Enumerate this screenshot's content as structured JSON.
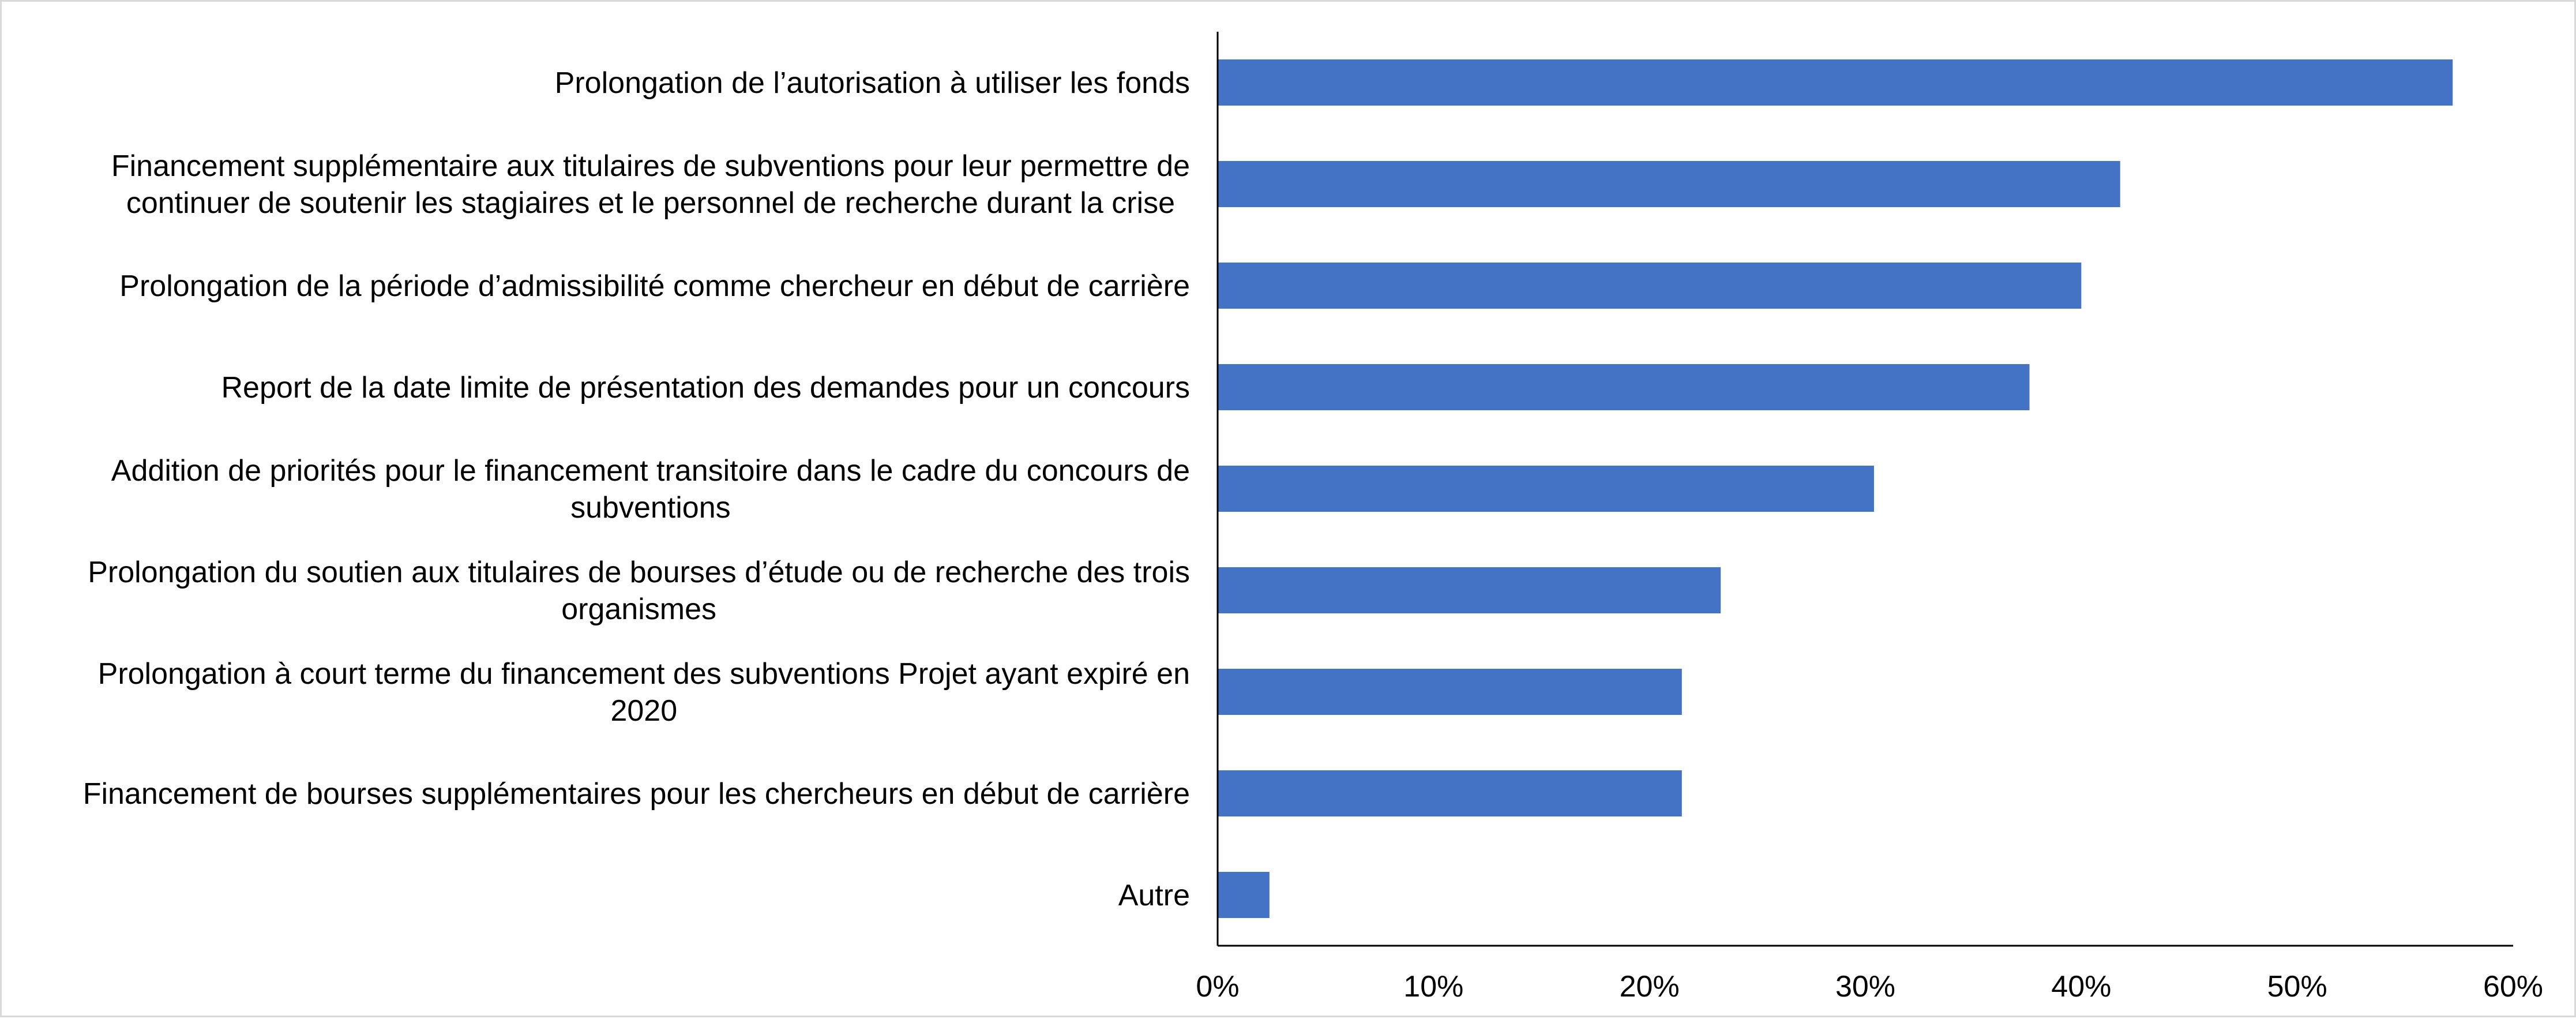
{
  "chart_data": {
    "type": "bar",
    "orientation": "horizontal",
    "categories": [
      [
        "Prolongation de l’autorisation à utiliser les fonds"
      ],
      [
        "Financement supplémentaire aux titulaires de subventions pour leur permettre de",
        "continuer de soutenir les stagiaires et le personnel de recherche durant la crise"
      ],
      [
        "Prolongation de la période d’admissibilité comme chercheur en début de carrière"
      ],
      [
        "Report de la date limite de présentation des demandes pour un concours"
      ],
      [
        "Addition de priorités pour le financement transitoire dans le cadre du concours de",
        "subventions"
      ],
      [
        "Prolongation du soutien aux titulaires de bourses d’étude ou de recherche des trois",
        "organismes"
      ],
      [
        "Prolongation à court terme du financement des subventions Projet ayant expiré en",
        "2020"
      ],
      [
        "Financement de bourses supplémentaires pour les chercheurs en début de carrière"
      ],
      [
        "Autre"
      ]
    ],
    "values": [
      57.2,
      41.8,
      40.0,
      37.6,
      30.4,
      23.3,
      21.5,
      21.5,
      2.4
    ],
    "xlim": [
      0,
      60
    ],
    "xticks": [
      0,
      10,
      20,
      30,
      40,
      50,
      60
    ],
    "tick_labels": [
      "0%",
      "10%",
      "20%",
      "30%",
      "40%",
      "50%",
      "60%"
    ],
    "grid": false,
    "legend": "none",
    "colors": {
      "bar": "#4472c4",
      "axis": "#000000"
    }
  }
}
